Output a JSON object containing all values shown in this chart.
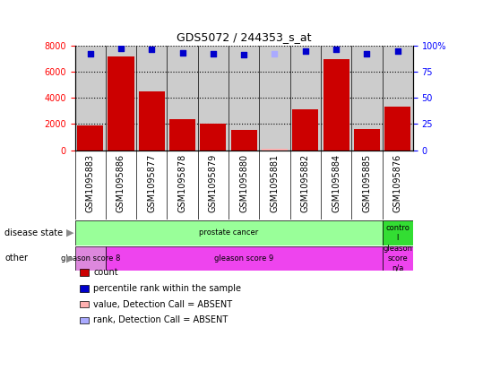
{
  "title": "GDS5072 / 244353_s_at",
  "samples": [
    "GSM1095883",
    "GSM1095886",
    "GSM1095877",
    "GSM1095878",
    "GSM1095879",
    "GSM1095880",
    "GSM1095881",
    "GSM1095882",
    "GSM1095884",
    "GSM1095885",
    "GSM1095876"
  ],
  "counts": [
    1900,
    7150,
    4500,
    2350,
    2050,
    1550,
    100,
    3100,
    6950,
    1600,
    3300
  ],
  "percentile_ranks": [
    92,
    97,
    96,
    93,
    92,
    91,
    92,
    95,
    96,
    92,
    95
  ],
  "absent_value_idx": [
    6
  ],
  "absent_rank_idx": [
    6
  ],
  "absent_value": 100,
  "absent_rank": 92,
  "ylim_left": [
    0,
    8000
  ],
  "ylim_right": [
    0,
    100
  ],
  "yticks_left": [
    0,
    2000,
    4000,
    6000,
    8000
  ],
  "yticks_right": [
    0,
    25,
    50,
    75,
    100
  ],
  "bar_color": "#cc0000",
  "dot_color": "#0000cc",
  "absent_value_color": "#ffb0b0",
  "absent_rank_color": "#aaaaff",
  "disease_state_prostate_color": "#99ff99",
  "disease_state_control_color": "#33dd33",
  "other_gleason8_color": "#dd88dd",
  "other_gleason9_color": "#ee44ee",
  "other_na_color": "#ee44ee",
  "ax_bg_color": "#cccccc",
  "tick_label_fontsize": 7,
  "bar_width": 0.85,
  "legend_items": [
    {
      "color": "#cc0000",
      "label": "count"
    },
    {
      "color": "#0000cc",
      "label": "percentile rank within the sample"
    },
    {
      "color": "#ffb0b0",
      "label": "value, Detection Call = ABSENT"
    },
    {
      "color": "#aaaaff",
      "label": "rank, Detection Call = ABSENT"
    }
  ]
}
